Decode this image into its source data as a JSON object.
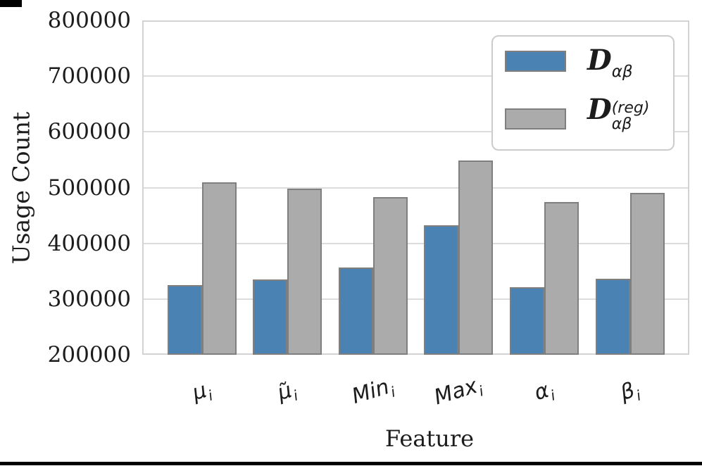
{
  "chart_data": {
    "type": "bar",
    "title": "",
    "xlabel": "Feature",
    "ylabel": "Usage Count",
    "categories": [
      "μᵢ",
      "μ̃ᵢ",
      "Minᵢ",
      "Maxᵢ",
      "αᵢ",
      "βᵢ"
    ],
    "series": [
      {
        "name": "D_αβ",
        "color": "#4a82b4",
        "values": [
          325000,
          335000,
          357000,
          433000,
          321000,
          337000
        ]
      },
      {
        "name": "D_αβ^(reg)",
        "color": "#ababab",
        "values": [
          510000,
          498000,
          483000,
          549000,
          474000,
          491000
        ]
      }
    ],
    "ylim": [
      200000,
      800000
    ],
    "ytick_step": 100000,
    "y_tick_labels": [
      "200000",
      "300000",
      "400000",
      "500000",
      "600000",
      "700000",
      "800000"
    ],
    "grid": true,
    "legend_position": "upper right",
    "bar_edge_color": "#7f7f7f",
    "gridline_color": "#dcdcdc"
  },
  "x_tick_labels": [
    {
      "base": "μ",
      "sub": "i"
    },
    {
      "base": "μ̃",
      "sub": "i"
    },
    {
      "base": "Min",
      "sub": "i"
    },
    {
      "base": "Max",
      "sub": "i"
    },
    {
      "base": "α",
      "sub": "i"
    },
    {
      "base": "β",
      "sub": "i"
    }
  ],
  "legend": {
    "entries": [
      {
        "symbol": "D",
        "sub": "αβ",
        "sup": "",
        "color": "#4a82b4"
      },
      {
        "symbol": "D",
        "sub": "αβ",
        "sup": "(reg)",
        "color": "#ababab"
      }
    ]
  },
  "decorations": {
    "bottom_rule_color": "#000000",
    "top_left_rule_color": "#000000"
  }
}
